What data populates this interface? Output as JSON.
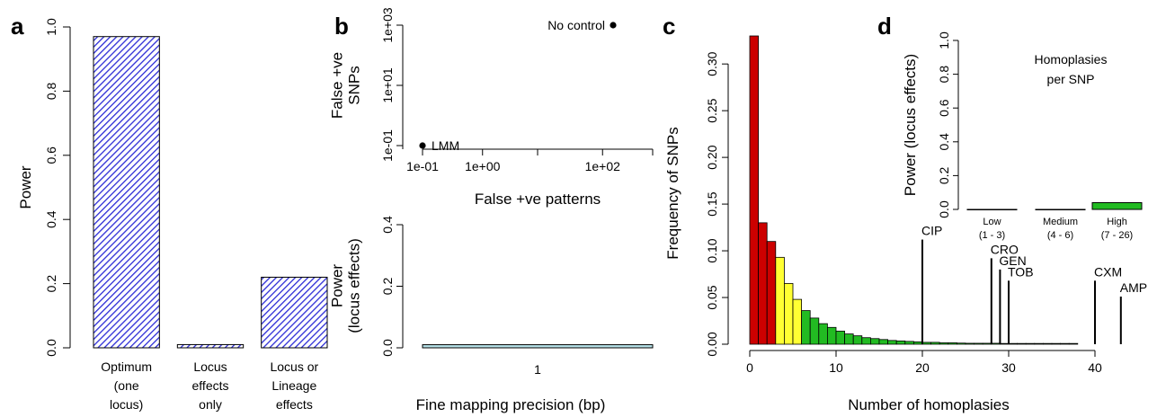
{
  "panels": {
    "a": {
      "letter": "a"
    },
    "b": {
      "letter": "b"
    },
    "c": {
      "letter": "c"
    },
    "d": {
      "letter": "d"
    }
  },
  "chart_data": [
    {
      "id": "a",
      "type": "bar",
      "categories": [
        [
          "Optimum",
          "(one",
          "locus)"
        ],
        [
          "Locus",
          "effects",
          "only"
        ],
        [
          "Locus or",
          "Lineage",
          "effects"
        ]
      ],
      "values": [
        0.97,
        0.01,
        0.22
      ],
      "ylabel": "Power",
      "ylim": [
        0,
        1
      ],
      "yticks": [
        "0.0",
        "0.2",
        "0.4",
        "0.6",
        "0.8",
        "1.0"
      ],
      "bar_color": "#2b2bd6",
      "hatched": true
    },
    {
      "id": "b_top",
      "type": "scatter",
      "xlabel": "False +ve patterns",
      "ylabel": [
        "False +ve",
        "SNPs"
      ],
      "log_x": true,
      "log_y": true,
      "xticks": [
        "1e-01",
        "1e+00",
        "1e+02"
      ],
      "yticks": [
        "1e-01",
        "1e+01",
        "1e+03"
      ],
      "points": [
        {
          "label": "LMM",
          "x": 0.1,
          "y": 0.1
        },
        {
          "label": "No control",
          "x": 150,
          "y": 1000
        }
      ]
    },
    {
      "id": "b_bottom",
      "type": "bar",
      "categories": [
        "1"
      ],
      "values": [
        0.01
      ],
      "xlabel": "Fine mapping precision (bp)",
      "ylabel": [
        "Power",
        "(locus effects)"
      ],
      "ylim": [
        0,
        0.4
      ],
      "yticks": [
        "0.0",
        "0.2",
        "0.4"
      ],
      "bar_color": "#b7e3ea"
    },
    {
      "id": "c",
      "type": "bar",
      "xlabel": "Number of homoplasies",
      "ylabel": "Frequency of SNPs",
      "xlim": [
        0,
        45
      ],
      "ylim": [
        0,
        0.33
      ],
      "xticks": [
        "0",
        "10",
        "20",
        "30",
        "40"
      ],
      "yticks": [
        "0.00",
        "0.05",
        "0.10",
        "0.15",
        "0.20",
        "0.25",
        "0.30"
      ],
      "x": [
        1,
        2,
        3,
        4,
        5,
        6,
        7,
        8,
        9,
        10,
        11,
        12,
        13,
        14,
        15,
        16,
        17,
        18,
        19,
        20,
        21,
        22,
        23,
        24,
        25,
        26,
        27,
        28,
        29,
        30,
        31,
        32,
        33,
        34,
        35,
        36,
        37,
        38
      ],
      "values": [
        0.33,
        0.13,
        0.11,
        0.093,
        0.065,
        0.048,
        0.036,
        0.028,
        0.022,
        0.018,
        0.014,
        0.011,
        0.009,
        0.007,
        0.006,
        0.005,
        0.004,
        0.0035,
        0.003,
        0.0025,
        0.002,
        0.002,
        0.0015,
        0.0015,
        0.0012,
        0.001,
        0.001,
        0.001,
        0.001,
        0.0008,
        0.0008,
        0.0008,
        0.0008,
        0.0008,
        0.0008,
        0.0008,
        0.0008,
        0.0008
      ],
      "colors": {
        "low": "#cc0000",
        "medium": "#ffff33",
        "high": "#22bb22"
      },
      "color_bins": {
        "low": [
          1,
          3
        ],
        "medium": [
          4,
          6
        ],
        "high": [
          7,
          38
        ]
      },
      "annotations": [
        {
          "label": "CIP",
          "x": 20,
          "y": 0.112
        },
        {
          "label": "CRO",
          "x": 28,
          "y": 0.092
        },
        {
          "label": "GEN",
          "x": 29,
          "y": 0.08
        },
        {
          "label": "TOB",
          "x": 30,
          "y": 0.068
        },
        {
          "label": "CXM",
          "x": 40,
          "y": 0.068
        },
        {
          "label": "AMP",
          "x": 43,
          "y": 0.051
        }
      ]
    },
    {
      "id": "d",
      "type": "bar",
      "title": [
        "Homoplasies",
        "per SNP"
      ],
      "ylabel": "Power (locus effects)",
      "ylim": [
        0,
        1
      ],
      "yticks": [
        "0.0",
        "0.2",
        "0.4",
        "0.6",
        "0.8",
        "1.0"
      ],
      "categories": [
        [
          "Low",
          "(1 - 3)"
        ],
        [
          "Medium",
          "(4 - 6)"
        ],
        [
          "High",
          "(7 - 26)"
        ]
      ],
      "values": [
        0.0,
        0.0,
        0.04
      ],
      "bar_colors": [
        "#cc0000",
        "#ffff33",
        "#22bb22"
      ]
    }
  ]
}
